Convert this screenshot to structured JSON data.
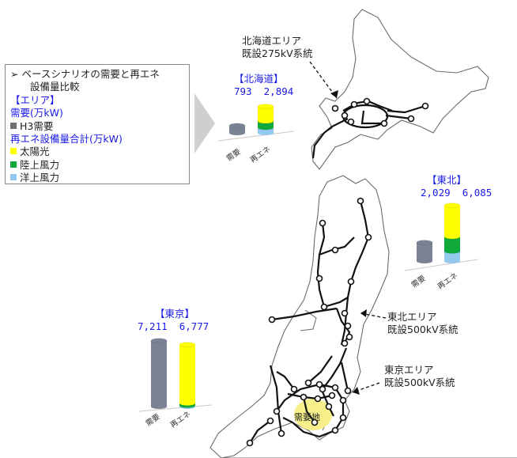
{
  "legend": {
    "title_line1": "ベースシナリオの需要と再エネ",
    "title_line2": "設備量比較",
    "area_label": "【エリア】",
    "demand_label": "需要(万kW)",
    "demand_item": "H3需要",
    "renewable_label": "再エネ設備量合計(万kW)",
    "items": [
      {
        "label": "太陽光",
        "color": "#ffff00"
      },
      {
        "label": "陸上風力",
        "color": "#0fa93c"
      },
      {
        "label": "洋上風力",
        "color": "#93c9ef"
      }
    ],
    "demand_color": "#707070"
  },
  "lines": {
    "hokkaido": {
      "line1": "北海道エリア",
      "line2": "既設275kV系統"
    },
    "tohoku": {
      "line1": "東北エリア",
      "line2": "既設500kV系統"
    },
    "tokyo": {
      "line1": "東京エリア",
      "line2": "既設500kV系統"
    }
  },
  "demand_area_label": "需要地",
  "regions": [
    {
      "key": "hokkaido",
      "name": "【北海道】",
      "demand_text": "793",
      "re_text": "2,894",
      "demand": 793,
      "solar": 1600,
      "onshore": 700,
      "offshore": 594
    },
    {
      "key": "tohoku",
      "name": "【東北】",
      "demand_text": "2,029",
      "re_text": "6,085",
      "demand": 2029,
      "solar": 3400,
      "onshore": 1600,
      "offshore": 1085
    },
    {
      "key": "tokyo",
      "name": "【東京】",
      "demand_text": "7,211",
      "re_text": "6,777",
      "demand": 7211,
      "solar": 6400,
      "onshore": 250,
      "offshore": 127
    }
  ],
  "axis_labels": {
    "demand": "需要",
    "renewable": "再エネ"
  }
}
